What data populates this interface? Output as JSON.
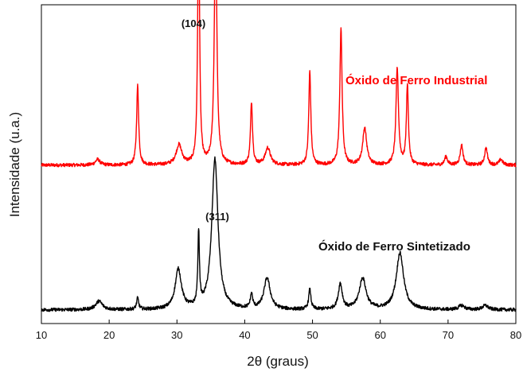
{
  "chart_data": {
    "type": "line",
    "title": "",
    "xlabel": "2θ (graus)",
    "ylabel": "Intensidade (u.a.)",
    "xlim": [
      10,
      80
    ],
    "x_ticks": [
      10,
      20,
      30,
      40,
      50,
      60,
      70,
      80
    ],
    "y_ticks_shown": false,
    "grid": false,
    "series": [
      {
        "name": "Óxido de Ferro Industrial",
        "color": "#ff0000",
        "baseline": 0.53,
        "peaks": [
          {
            "x": 18.3,
            "h": 0.02,
            "w": 0.4
          },
          {
            "x": 24.2,
            "h": 0.28,
            "w": 0.18
          },
          {
            "x": 30.3,
            "h": 0.07,
            "w": 0.5
          },
          {
            "x": 33.2,
            "h": 0.93,
            "w": 0.16
          },
          {
            "x": 35.7,
            "h": 0.86,
            "w": 0.22
          },
          {
            "x": 41.0,
            "h": 0.22,
            "w": 0.18
          },
          {
            "x": 43.4,
            "h": 0.06,
            "w": 0.45
          },
          {
            "x": 49.6,
            "h": 0.33,
            "w": 0.18
          },
          {
            "x": 54.2,
            "h": 0.48,
            "w": 0.2
          },
          {
            "x": 57.7,
            "h": 0.13,
            "w": 0.35
          },
          {
            "x": 62.5,
            "h": 0.34,
            "w": 0.22
          },
          {
            "x": 64.0,
            "h": 0.28,
            "w": 0.18
          },
          {
            "x": 69.7,
            "h": 0.03,
            "w": 0.25
          },
          {
            "x": 72.0,
            "h": 0.07,
            "w": 0.25
          },
          {
            "x": 75.6,
            "h": 0.06,
            "w": 0.25
          },
          {
            "x": 77.8,
            "h": 0.02,
            "w": 0.3
          }
        ]
      },
      {
        "name": "Óxido de Ferro Sintetizado",
        "color": "#000000",
        "baseline": 0.02,
        "peaks": [
          {
            "x": 18.5,
            "h": 0.03,
            "w": 0.6
          },
          {
            "x": 24.2,
            "h": 0.04,
            "w": 0.18
          },
          {
            "x": 30.2,
            "h": 0.14,
            "w": 0.55
          },
          {
            "x": 33.2,
            "h": 0.26,
            "w": 0.14
          },
          {
            "x": 35.6,
            "h": 0.53,
            "w": 0.55
          },
          {
            "x": 41.0,
            "h": 0.05,
            "w": 0.2
          },
          {
            "x": 43.3,
            "h": 0.11,
            "w": 0.55
          },
          {
            "x": 49.6,
            "h": 0.07,
            "w": 0.2
          },
          {
            "x": 54.1,
            "h": 0.09,
            "w": 0.35
          },
          {
            "x": 57.4,
            "h": 0.11,
            "w": 0.6
          },
          {
            "x": 62.9,
            "h": 0.2,
            "w": 0.65
          },
          {
            "x": 72.0,
            "h": 0.015,
            "w": 0.5
          },
          {
            "x": 75.5,
            "h": 0.015,
            "w": 0.5
          }
        ]
      }
    ],
    "annotations": [
      {
        "text": "(104)",
        "x": 33.2,
        "series": 0
      },
      {
        "text": "(311)",
        "x": 35.6,
        "series": 1
      }
    ]
  }
}
